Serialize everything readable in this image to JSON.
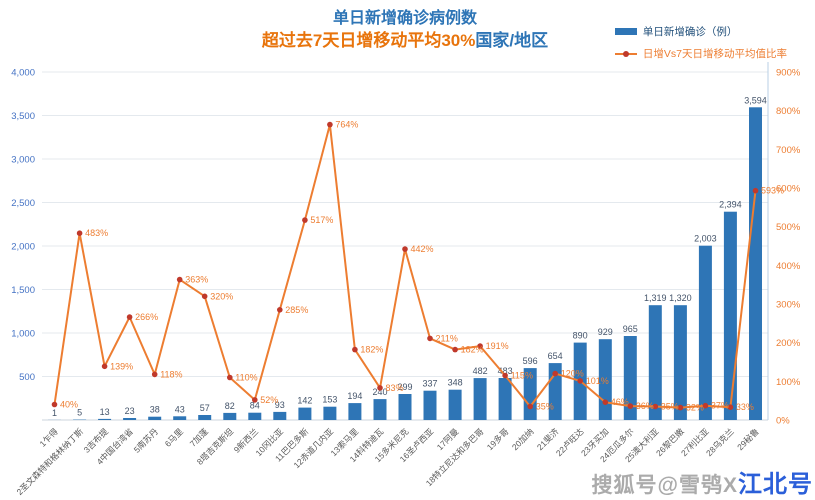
{
  "title": {
    "line1": "单日新增确诊病例数",
    "line2_part1": "超过去7天日增移动平均",
    "line2_part2": "30%",
    "line2_part3": "国家/地区"
  },
  "legend": {
    "items": [
      {
        "label": "单日新增确诊（例）",
        "swatch": "bar",
        "color": "#2E75B6"
      },
      {
        "label": "日增Vs7天日增移动平均值比率",
        "swatch": "line",
        "color": "#ED7D31"
      }
    ]
  },
  "watermark": {
    "gray": "搜狐号@雪鸮X",
    "blue": "江北号"
  },
  "chart_data": {
    "type": "bar",
    "combo": "bar+line dual axis",
    "title": "单日新增确诊病例数 超过去7天日增移动平均30%国家/地区",
    "legend_position": "top-right",
    "grid": true,
    "categories": [
      "1乍得",
      "2圣文森特和格林纳丁斯",
      "3吉布提",
      "4中国台湾省",
      "5南苏丹",
      "6马里",
      "7加蓬",
      "8塔吉克斯坦",
      "9新西兰",
      "10冈比亚",
      "11巴巴多斯",
      "12赤道几内亚",
      "13索马里",
      "14科特迪瓦",
      "15多米尼克",
      "16圣卢西亚",
      "17阿曼",
      "18特立尼达和多巴哥",
      "19多哥",
      "20加纳",
      "21斐济",
      "22卢旺达",
      "23牙买加",
      "24厄瓜多尔",
      "25澳大利亚",
      "26黎巴嫩",
      "27利比亚",
      "28乌克兰",
      "29秘鲁"
    ],
    "series": [
      {
        "name": "单日新增确诊（例）",
        "type": "bar",
        "axis": "left",
        "color": "#2E75B6",
        "value_label_color": "#44546A",
        "values": [
          1,
          5,
          13,
          23,
          38,
          43,
          57,
          82,
          84,
          93,
          142,
          153,
          194,
          240,
          299,
          337,
          348,
          482,
          483,
          596,
          654,
          890,
          929,
          965,
          1319,
          1320,
          2003,
          2394,
          3594
        ],
        "labels": [
          "1",
          "5",
          "13",
          "23",
          "38",
          "43",
          "57",
          "82",
          "84",
          "93",
          "142",
          "153",
          "194",
          "240",
          "299",
          "337",
          "348",
          "482",
          "483",
          "596",
          "654",
          "890",
          "929",
          "965",
          "1,319",
          "1,320",
          "2,003",
          "2,394",
          "3,594"
        ]
      },
      {
        "name": "日增Vs7天日增移动平均值比率",
        "type": "line",
        "axis": "right",
        "color": "#ED7D31",
        "marker_color": "#C0392B",
        "values_percent": [
          40,
          483,
          139,
          266,
          118,
          363,
          320,
          110,
          52,
          285,
          517,
          764,
          182,
          83,
          442,
          211,
          182,
          191,
          115,
          35,
          120,
          101,
          46,
          36,
          35,
          32,
          37,
          33,
          593
        ],
        "labels": [
          "40%",
          "483%",
          "139%",
          "266%",
          "118%",
          "363%",
          "320%",
          "110%",
          "52%",
          "285%",
          "517%",
          "764%",
          "182%",
          "83%",
          "442%",
          "211%",
          "182%",
          "191%",
          "115%",
          "35%",
          "120%",
          "101%",
          "46%",
          "36%",
          "35%",
          "32%",
          "37%",
          "33%",
          "593%"
        ]
      }
    ],
    "left_axis": {
      "min": 0,
      "max": 4000,
      "step": 500,
      "color": "#4472C4",
      "ticks": [
        "4,000",
        "3,500",
        "3,000",
        "2,500",
        "2,000",
        "1,500",
        "1,000",
        "500"
      ]
    },
    "right_axis": {
      "min": 0,
      "max": 900,
      "step": 100,
      "color": "#ED7D31",
      "ticks": [
        "900%",
        "800%",
        "700%",
        "600%",
        "500%",
        "400%",
        "300%",
        "200%",
        "100%",
        "0%"
      ]
    },
    "x_label_color": "#5a5a5a"
  }
}
